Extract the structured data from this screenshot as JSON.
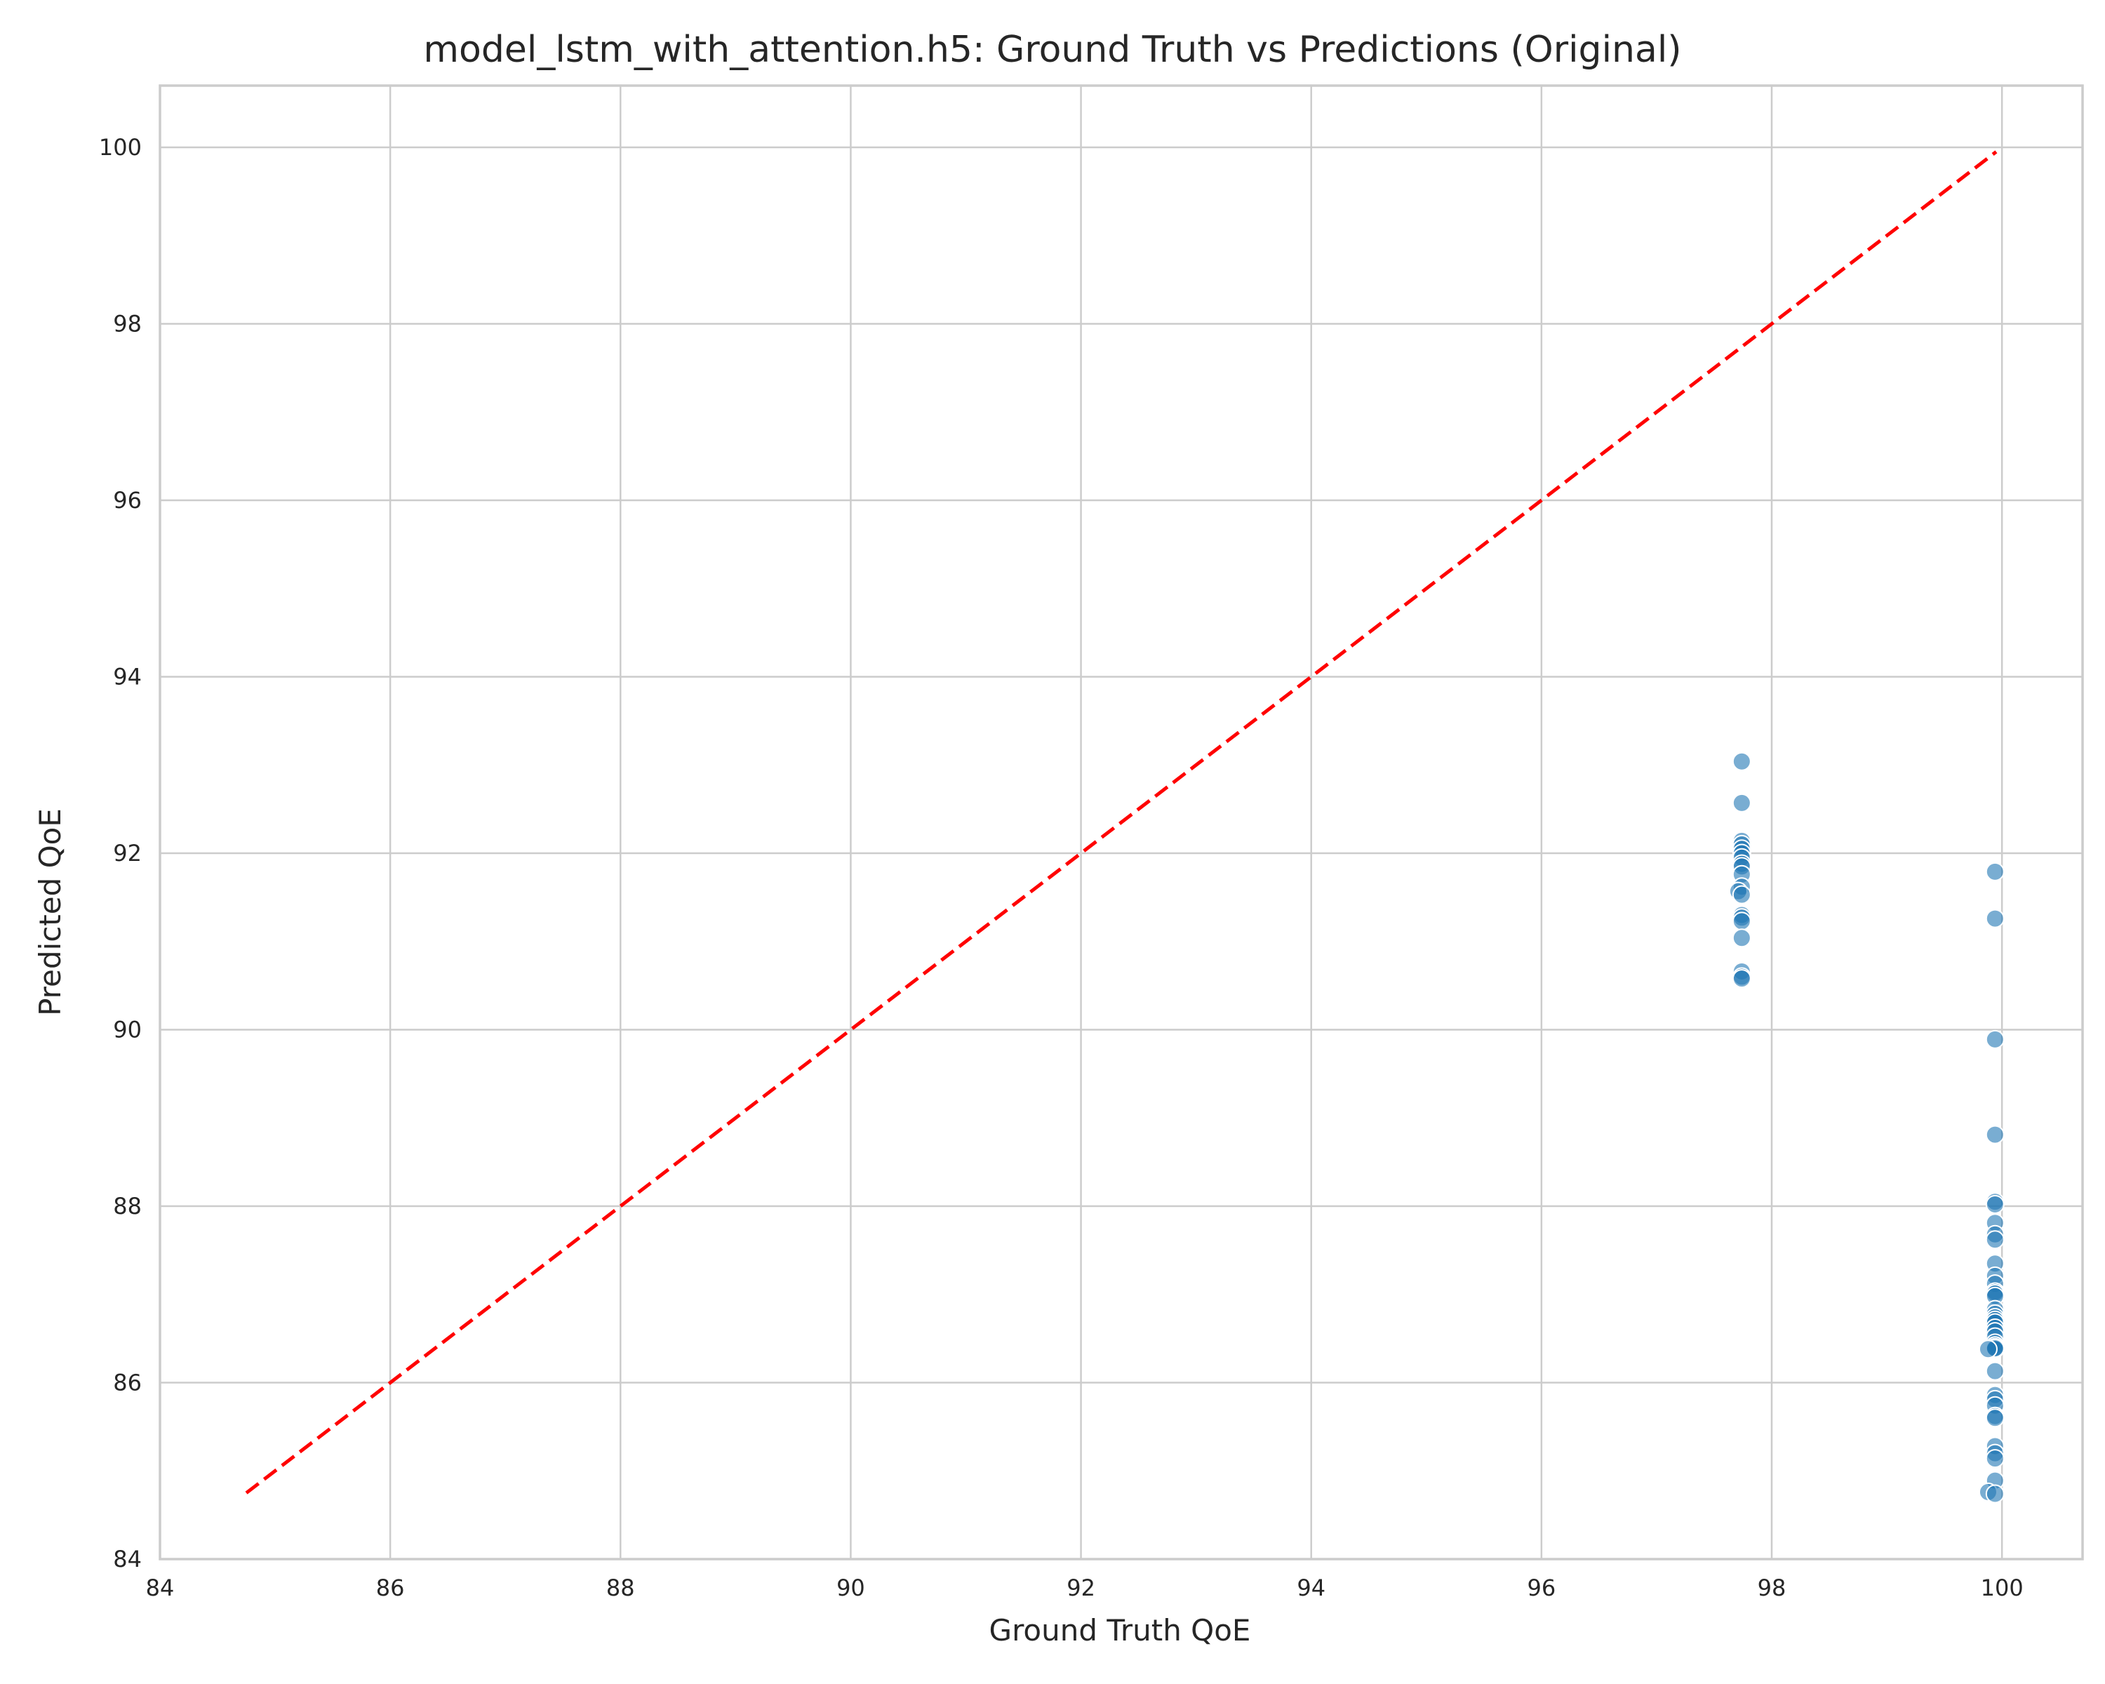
{
  "chart_data": {
    "type": "scatter",
    "title": "model_lstm_with_attention.h5: Ground Truth vs Predictions (Original)",
    "xlabel": "Ground Truth QoE",
    "ylabel": "Predicted QoE",
    "xlim": [
      84,
      100.7
    ],
    "ylim": [
      84,
      100.7
    ],
    "xticks": [
      84,
      86,
      88,
      90,
      92,
      94,
      96,
      98,
      100
    ],
    "yticks": [
      84,
      86,
      88,
      90,
      92,
      94,
      96,
      98,
      100
    ],
    "xtick_labels": [
      "84",
      "86",
      "88",
      "90",
      "92",
      "94",
      "96",
      "98",
      "100"
    ],
    "ytick_labels": [
      "84",
      "86",
      "88",
      "90",
      "92",
      "94",
      "96",
      "98",
      "100"
    ],
    "grid": true,
    "point_color": "#1f77b4",
    "point_opacity": 0.6,
    "reference_line": {
      "x": [
        84.75,
        99.95
      ],
      "y": [
        84.75,
        99.95
      ],
      "color": "#ff0000",
      "style": "dashed"
    },
    "points": {
      "x": [
        97.74,
        97.74,
        97.74,
        97.74,
        97.74,
        97.74,
        97.74,
        97.74,
        97.74,
        97.74,
        97.74,
        97.71,
        97.74,
        97.74,
        97.74,
        97.74,
        97.74,
        97.74,
        97.74,
        97.74,
        99.94,
        99.94,
        99.94,
        99.94,
        99.94,
        99.94,
        99.94,
        99.94,
        99.94,
        99.94,
        99.94,
        99.94,
        99.94,
        99.94,
        99.94,
        99.94,
        99.94,
        99.94,
        99.94,
        99.94,
        99.94,
        99.94,
        99.94,
        99.94,
        99.94,
        99.94,
        99.94,
        99.94,
        99.88,
        99.94,
        99.94,
        99.94,
        99.94,
        99.94,
        99.94,
        99.94,
        99.94,
        99.94,
        99.94,
        99.88,
        99.94
      ],
      "y": [
        93.04,
        92.57,
        92.14,
        92.1,
        92.05,
        92.0,
        91.95,
        91.88,
        91.85,
        91.76,
        91.62,
        91.57,
        91.53,
        91.3,
        91.27,
        91.23,
        91.04,
        90.66,
        90.6,
        90.58,
        91.79,
        91.26,
        89.89,
        88.81,
        88.05,
        88.02,
        87.81,
        87.68,
        87.62,
        87.35,
        87.21,
        87.12,
        87.03,
        87.01,
        86.98,
        86.83,
        86.78,
        86.74,
        86.71,
        86.68,
        86.62,
        86.58,
        86.52,
        86.45,
        86.42,
        86.4,
        86.38,
        86.39,
        86.38,
        86.13,
        85.86,
        85.81,
        85.74,
        85.62,
        85.6,
        85.28,
        85.2,
        85.14,
        84.89,
        84.76,
        84.74
      ]
    }
  }
}
